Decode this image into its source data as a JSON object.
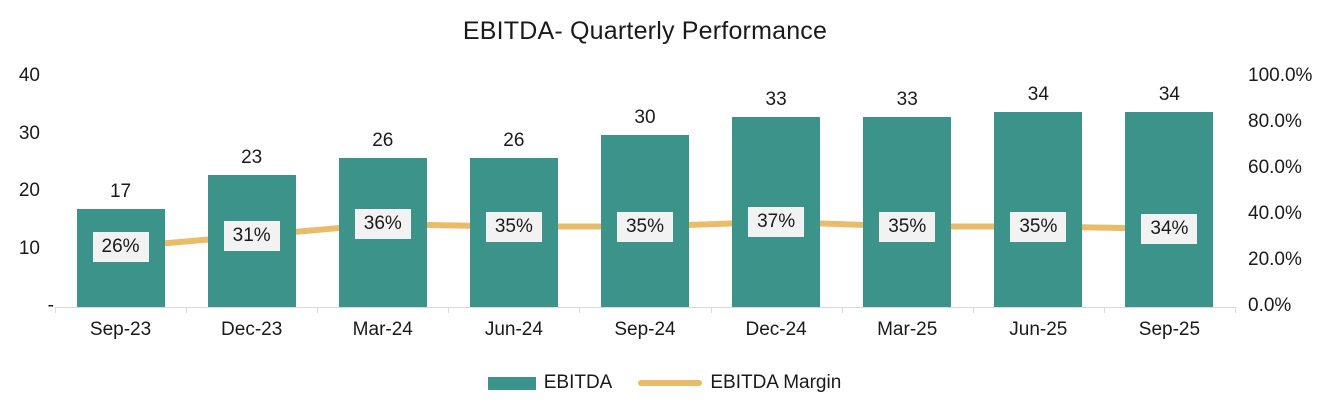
{
  "chart_data": {
    "type": "bar+line combo",
    "title": "EBITDA- Quarterly Performance",
    "categories": [
      "Sep-23",
      "Dec-23",
      "Mar-24",
      "Jun-24",
      "Sep-24",
      "Dec-24",
      "Mar-25",
      "Jun-25",
      "Sep-25"
    ],
    "series": [
      {
        "name": "EBITDA",
        "type": "bar",
        "axis": "left",
        "color": "#3b938a",
        "values": [
          17,
          23,
          26,
          26,
          30,
          33,
          33,
          34,
          34
        ]
      },
      {
        "name": "EBITDA Margin",
        "type": "line",
        "axis": "right",
        "color": "#e8bc68",
        "values": [
          26,
          31,
          36,
          35,
          35,
          37,
          35,
          35,
          34
        ],
        "labels": [
          "26%",
          "31%",
          "36%",
          "35%",
          "35%",
          "37%",
          "35%",
          "35%",
          "34%"
        ]
      }
    ],
    "left_axis": {
      "ticks": [
        "40",
        "30",
        "20",
        "10",
        "-"
      ],
      "min": 0,
      "max": 40
    },
    "right_axis": {
      "ticks": [
        "100.0%",
        "80.0%",
        "60.0%",
        "40.0%",
        "20.0%",
        "0.0%"
      ],
      "min": 0,
      "max": 100
    },
    "grid": false,
    "legend_position": "bottom",
    "point_label_bg": "#f2f2f2",
    "axis_line_color": "#d9d9d9"
  }
}
